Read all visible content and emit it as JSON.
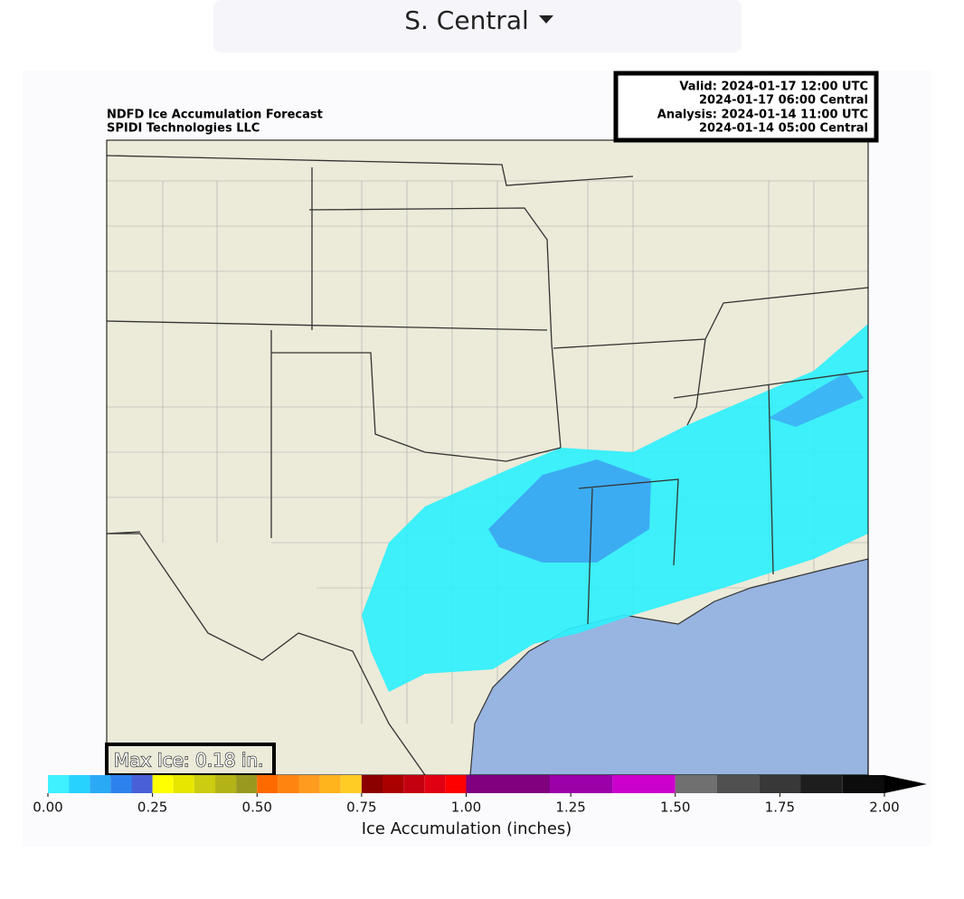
{
  "header": {
    "region": "S. Central"
  },
  "map": {
    "title": [
      "NDFD Ice Accumulation Forecast",
      "SPIDI Technologies LLC"
    ],
    "info": [
      "Valid: 2024-01-17 12:00 UTC",
      "2024-01-17 06:00 Central",
      "Analysis: 2024-01-14 11:00 UTC",
      "2024-01-14 05:00 Central"
    ],
    "max_label": "Max Ice: 0.18 in."
  },
  "colorbar": {
    "label": "Ice Accumulation (inches)",
    "bounds": [
      0,
      0.05,
      0.1,
      0.15,
      0.2,
      0.25,
      0.3,
      0.35,
      0.4,
      0.45,
      0.5,
      0.55,
      0.6,
      0.65,
      0.7,
      0.75,
      0.8,
      0.85,
      0.9,
      0.95,
      1.0,
      1.2,
      1.35,
      1.5,
      1.6,
      1.7,
      1.8,
      1.9,
      2.0
    ],
    "colors": [
      "#3ff0ff",
      "#28d2ff",
      "#2aaaf5",
      "#2e82ee",
      "#4a60d8",
      "#ffff00",
      "#e6e600",
      "#cccc10",
      "#b3b318",
      "#999920",
      "#ff6a00",
      "#ff8410",
      "#ff9c20",
      "#ffb41e",
      "#ffcc26",
      "#8c0000",
      "#aa0000",
      "#c40010",
      "#e00012",
      "#ff0000",
      "#800080",
      "#9c00a8",
      "#cc00cc",
      "#707070",
      "#505050",
      "#383838",
      "#1e1e1e",
      "#0c0c0c"
    ],
    "extend_color": "#000000",
    "ticks": [
      {
        "value": 0,
        "label": "0.00"
      },
      {
        "value": 0.25,
        "label": "0.25"
      },
      {
        "value": 0.5,
        "label": "0.50"
      },
      {
        "value": 0.75,
        "label": "0.75"
      },
      {
        "value": 1.0,
        "label": "1.00"
      },
      {
        "value": 1.25,
        "label": "1.25"
      },
      {
        "value": 1.5,
        "label": "1.50"
      },
      {
        "value": 1.75,
        "label": "1.75"
      },
      {
        "value": 2.0,
        "label": "2.00"
      }
    ]
  }
}
